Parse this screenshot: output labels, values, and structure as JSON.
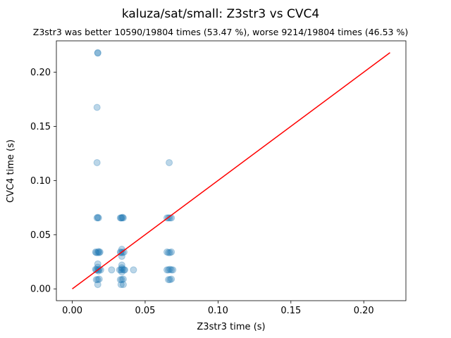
{
  "chart_data": {
    "type": "scatter",
    "title": "kaluza/sat/small: Z3str3 vs CVC4",
    "subtitle": "Z3str3 was better 10590/19804 times (53.47 %), worse 9214/19804 times (46.53 %)",
    "xlabel": "Z3str3 time (s)",
    "ylabel": "CVC4 time (s)",
    "xlim": [
      -0.0109,
      0.2289
    ],
    "ylim": [
      -0.0109,
      0.2289
    ],
    "xticks": [
      "0.00",
      "0.05",
      "0.10",
      "0.15",
      "0.20"
    ],
    "yticks": [
      "0.00",
      "0.05",
      "0.10",
      "0.15",
      "0.20"
    ],
    "xtick_values": [
      0.0,
      0.05,
      0.1,
      0.15,
      0.2
    ],
    "ytick_values": [
      0.0,
      0.05,
      0.1,
      0.15,
      0.2
    ],
    "grid": false,
    "colors": {
      "points": "#1f77b4",
      "diagonal": "#ff0000"
    },
    "diagonal": {
      "x": [
        0.0,
        0.218
      ],
      "y": [
        0.0,
        0.218
      ]
    },
    "series": [
      {
        "points": [
          [
            0.0175,
            0.218
          ],
          [
            0.0175,
            0.2175
          ],
          [
            0.017,
            0.1675
          ],
          [
            0.017,
            0.1165
          ],
          [
            0.0665,
            0.1165
          ],
          [
            0.017,
            0.0655
          ],
          [
            0.018,
            0.0655
          ],
          [
            0.0175,
            0.066
          ],
          [
            0.0335,
            0.0655
          ],
          [
            0.034,
            0.0655
          ],
          [
            0.0345,
            0.066
          ],
          [
            0.035,
            0.0655
          ],
          [
            0.033,
            0.0655
          ],
          [
            0.066,
            0.0655
          ],
          [
            0.067,
            0.0655
          ],
          [
            0.068,
            0.0655
          ],
          [
            0.065,
            0.0655
          ],
          [
            0.0165,
            0.0335
          ],
          [
            0.0175,
            0.0335
          ],
          [
            0.0185,
            0.0335
          ],
          [
            0.019,
            0.034
          ],
          [
            0.016,
            0.034
          ],
          [
            0.018,
            0.0345
          ],
          [
            0.0175,
            0.023
          ],
          [
            0.0175,
            0.02
          ],
          [
            0.0335,
            0.0335
          ],
          [
            0.0345,
            0.0335
          ],
          [
            0.0355,
            0.034
          ],
          [
            0.033,
            0.034
          ],
          [
            0.034,
            0.0365
          ],
          [
            0.034,
            0.03
          ],
          [
            0.066,
            0.0335
          ],
          [
            0.067,
            0.0335
          ],
          [
            0.068,
            0.034
          ],
          [
            0.065,
            0.034
          ],
          [
            0.0165,
            0.0175
          ],
          [
            0.0175,
            0.0175
          ],
          [
            0.0185,
            0.018
          ],
          [
            0.0195,
            0.0175
          ],
          [
            0.016,
            0.018
          ],
          [
            0.018,
            0.0165
          ],
          [
            0.027,
            0.0175
          ],
          [
            0.0325,
            0.0175
          ],
          [
            0.0335,
            0.0175
          ],
          [
            0.0345,
            0.018
          ],
          [
            0.0355,
            0.0175
          ],
          [
            0.036,
            0.0175
          ],
          [
            0.034,
            0.0155
          ],
          [
            0.034,
            0.0195
          ],
          [
            0.034,
            0.022
          ],
          [
            0.042,
            0.0175
          ],
          [
            0.065,
            0.0175
          ],
          [
            0.066,
            0.0175
          ],
          [
            0.067,
            0.018
          ],
          [
            0.068,
            0.0175
          ],
          [
            0.069,
            0.0175
          ],
          [
            0.0165,
            0.0085
          ],
          [
            0.0175,
            0.0085
          ],
          [
            0.0185,
            0.009
          ],
          [
            0.0175,
            0.004
          ],
          [
            0.033,
            0.0085
          ],
          [
            0.034,
            0.0085
          ],
          [
            0.035,
            0.009
          ],
          [
            0.0335,
            0.004
          ],
          [
            0.035,
            0.004
          ],
          [
            0.066,
            0.0085
          ],
          [
            0.067,
            0.0085
          ],
          [
            0.068,
            0.009
          ]
        ]
      }
    ]
  }
}
